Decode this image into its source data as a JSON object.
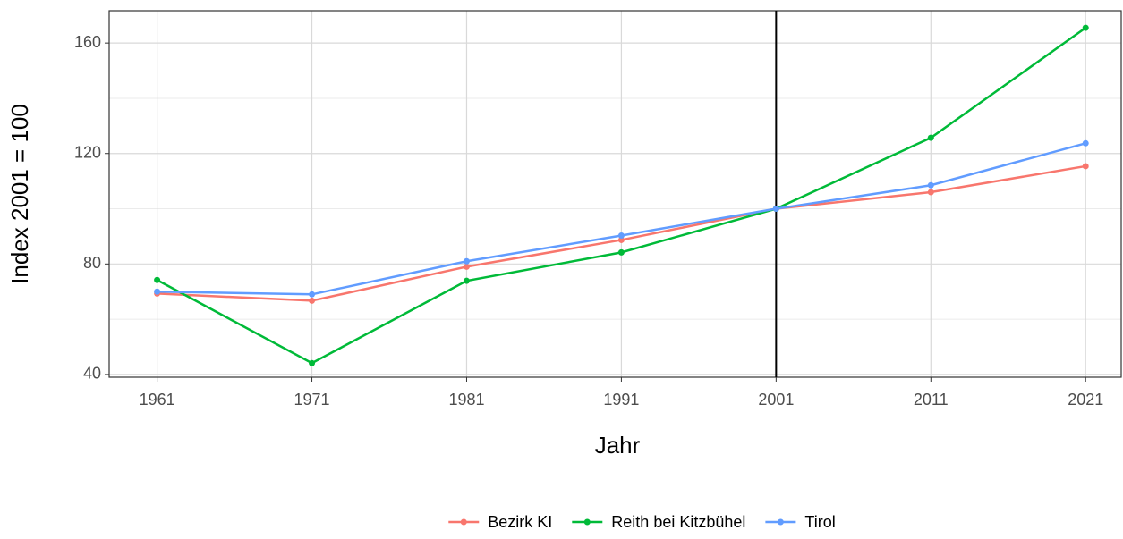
{
  "chart_data": {
    "type": "line",
    "xlabel": "Jahr",
    "ylabel": "Index 2001 = 100",
    "x": [
      1961,
      1971,
      1981,
      1991,
      2001,
      2011,
      2021
    ],
    "series": [
      {
        "name": "Bezirk KI",
        "color": "#F8766D",
        "values": [
          69.3,
          66.7,
          79,
          88.7,
          100,
          106,
          115.4
        ]
      },
      {
        "name": "Reith bei Kitzbühel",
        "color": "#00BA38",
        "values": [
          74.2,
          44.1,
          73.9,
          84.2,
          100,
          125.7,
          165.5
        ]
      },
      {
        "name": "Tirol",
        "color": "#619CFF",
        "values": [
          70,
          69,
          81,
          90.3,
          100,
          108.5,
          123.7
        ]
      }
    ],
    "xlim": [
      1957.9,
      2023.3
    ],
    "xticks": [
      1961,
      1971,
      1981,
      1991,
      2001,
      2011,
      2021
    ],
    "ylim": [
      39,
      171.7
    ],
    "yticks": [
      40,
      80,
      120,
      160
    ],
    "yminor": [
      60,
      100,
      140
    ],
    "vline": 2001,
    "grid": true,
    "legend": "bottom"
  }
}
